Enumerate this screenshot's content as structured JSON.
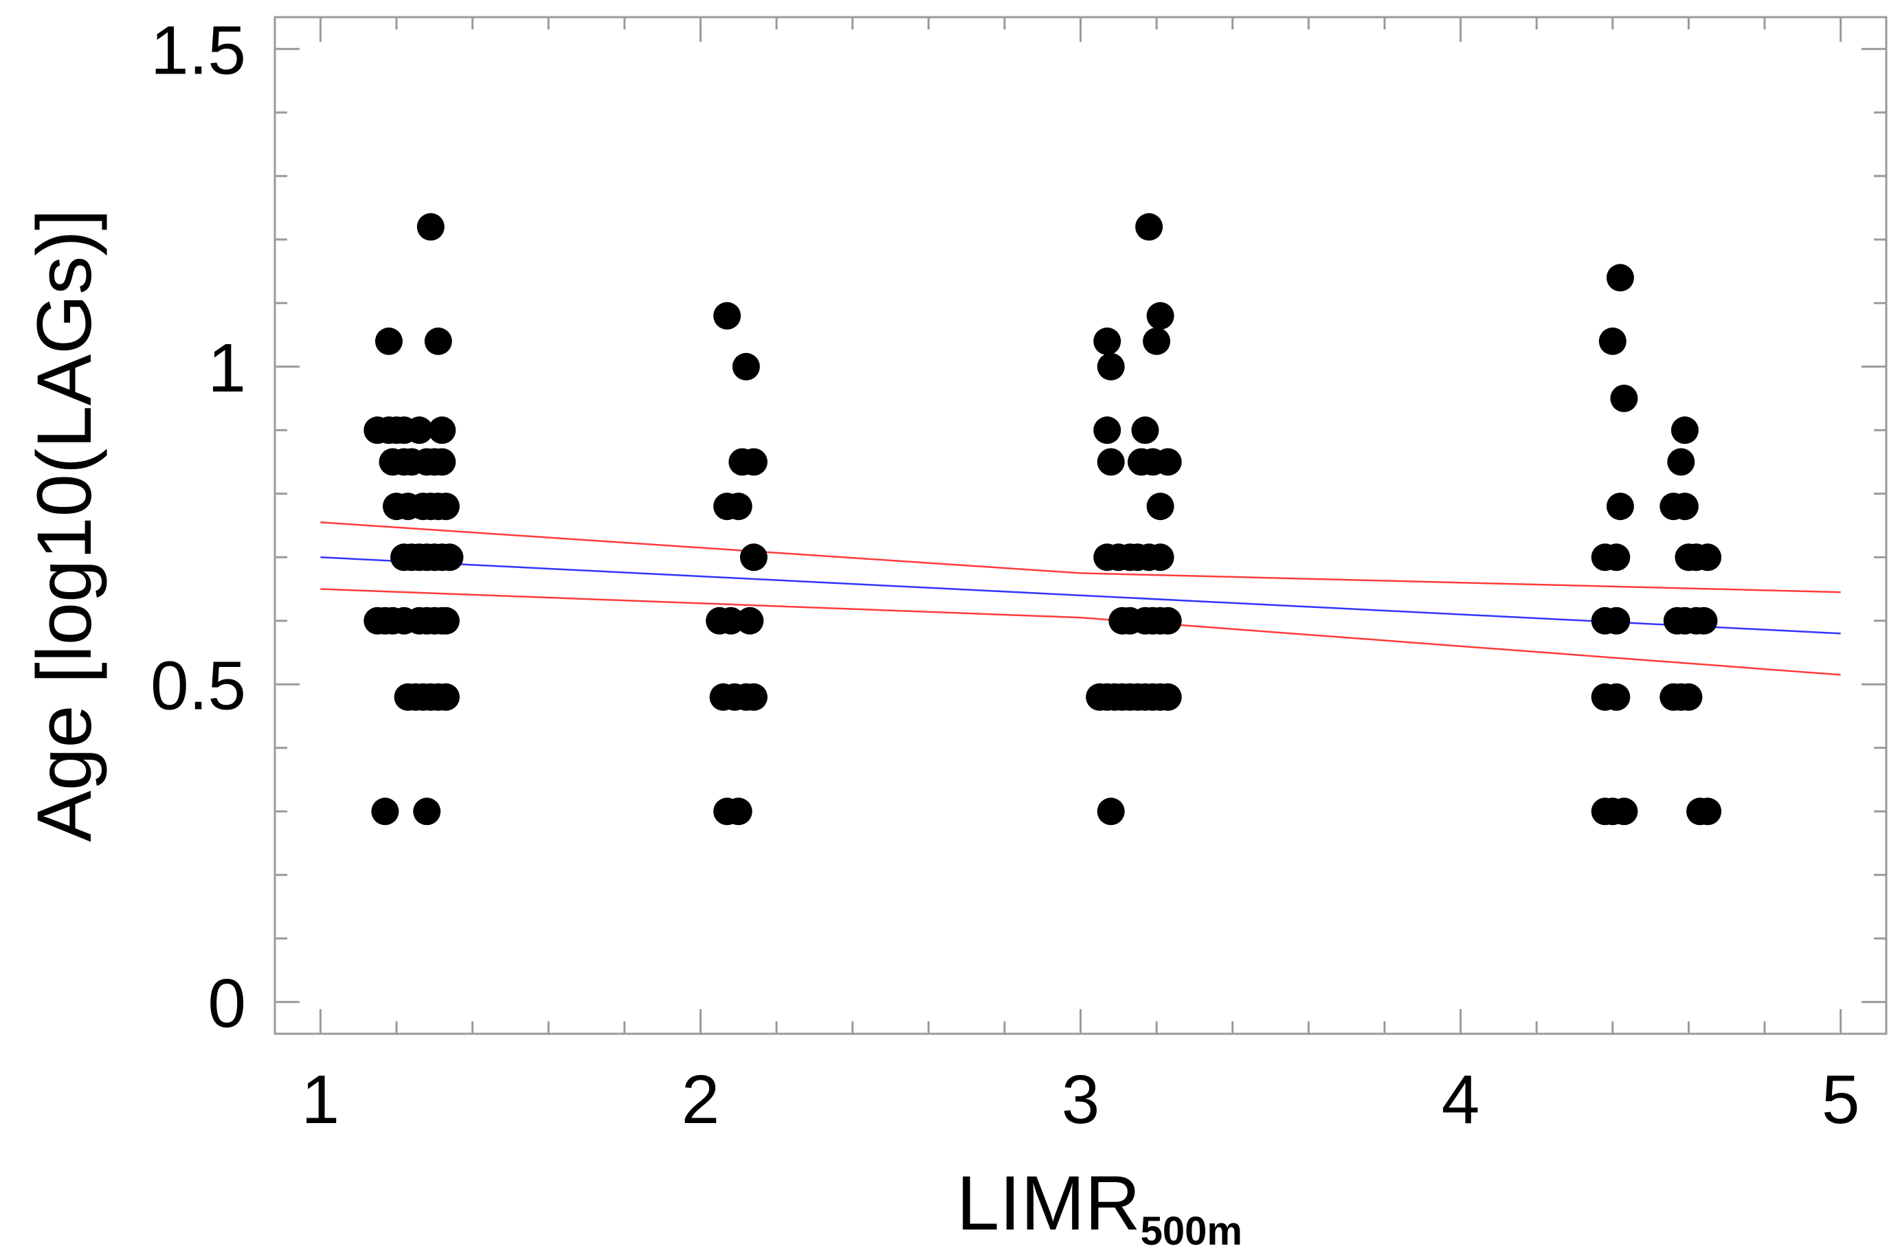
{
  "chart_data": {
    "type": "scatter",
    "xlabel": "LIMR",
    "xlabel_subscript": "500m",
    "ylabel": "Age [log10(LAGs)]",
    "xlim": [
      0.88,
      5.12
    ],
    "ylim": [
      -0.05,
      1.55
    ],
    "x_ticks": [
      1,
      2,
      3,
      4,
      5
    ],
    "x_tick_labels": [
      "1",
      "2",
      "3",
      "4",
      "5"
    ],
    "y_ticks": [
      0,
      0.5,
      1,
      1.5
    ],
    "y_tick_labels": [
      "0",
      "0.5",
      "1",
      "1.5"
    ],
    "grid": false,
    "colors": {
      "points": "#000000",
      "fit_line": "#3333ff",
      "ci_lines": "#ff3b3b",
      "frame": "#9a9a9a"
    },
    "points": [
      [
        1.17,
        0.3
      ],
      [
        1.28,
        0.3
      ],
      [
        1.18,
        1.04
      ],
      [
        1.31,
        1.04
      ],
      [
        1.29,
        1.22
      ],
      [
        1.15,
        0.9
      ],
      [
        1.18,
        0.9
      ],
      [
        1.2,
        0.9
      ],
      [
        1.22,
        0.9
      ],
      [
        1.26,
        0.9
      ],
      [
        1.32,
        0.9
      ],
      [
        1.19,
        0.85
      ],
      [
        1.22,
        0.85
      ],
      [
        1.24,
        0.85
      ],
      [
        1.28,
        0.85
      ],
      [
        1.3,
        0.85
      ],
      [
        1.32,
        0.85
      ],
      [
        1.2,
        0.78
      ],
      [
        1.23,
        0.78
      ],
      [
        1.27,
        0.78
      ],
      [
        1.29,
        0.78
      ],
      [
        1.31,
        0.78
      ],
      [
        1.33,
        0.78
      ],
      [
        1.22,
        0.7
      ],
      [
        1.24,
        0.7
      ],
      [
        1.26,
        0.7
      ],
      [
        1.28,
        0.7
      ],
      [
        1.3,
        0.7
      ],
      [
        1.32,
        0.7
      ],
      [
        1.34,
        0.7
      ],
      [
        1.15,
        0.6
      ],
      [
        1.17,
        0.6
      ],
      [
        1.19,
        0.6
      ],
      [
        1.22,
        0.6
      ],
      [
        1.26,
        0.6
      ],
      [
        1.28,
        0.6
      ],
      [
        1.3,
        0.6
      ],
      [
        1.32,
        0.6
      ],
      [
        1.33,
        0.6
      ],
      [
        1.23,
        0.48
      ],
      [
        1.25,
        0.48
      ],
      [
        1.27,
        0.48
      ],
      [
        1.29,
        0.48
      ],
      [
        1.31,
        0.48
      ],
      [
        1.33,
        0.48
      ],
      [
        2.07,
        0.3
      ],
      [
        2.1,
        0.3
      ],
      [
        2.07,
        1.08
      ],
      [
        2.12,
        1.0
      ],
      [
        2.11,
        0.85
      ],
      [
        2.14,
        0.85
      ],
      [
        2.07,
        0.78
      ],
      [
        2.1,
        0.78
      ],
      [
        2.14,
        0.7
      ],
      [
        2.05,
        0.6
      ],
      [
        2.08,
        0.6
      ],
      [
        2.13,
        0.6
      ],
      [
        2.06,
        0.48
      ],
      [
        2.09,
        0.48
      ],
      [
        2.12,
        0.48
      ],
      [
        2.14,
        0.48
      ],
      [
        3.08,
        0.3
      ],
      [
        3.07,
        1.04
      ],
      [
        3.08,
        1.0
      ],
      [
        3.18,
        1.22
      ],
      [
        3.2,
        1.04
      ],
      [
        3.21,
        1.08
      ],
      [
        3.07,
        0.9
      ],
      [
        3.17,
        0.9
      ],
      [
        3.08,
        0.85
      ],
      [
        3.16,
        0.85
      ],
      [
        3.19,
        0.85
      ],
      [
        3.23,
        0.85
      ],
      [
        3.21,
        0.78
      ],
      [
        3.07,
        0.7
      ],
      [
        3.1,
        0.7
      ],
      [
        3.13,
        0.7
      ],
      [
        3.15,
        0.7
      ],
      [
        3.18,
        0.7
      ],
      [
        3.21,
        0.7
      ],
      [
        3.11,
        0.6
      ],
      [
        3.13,
        0.6
      ],
      [
        3.17,
        0.6
      ],
      [
        3.19,
        0.6
      ],
      [
        3.21,
        0.6
      ],
      [
        3.23,
        0.6
      ],
      [
        3.05,
        0.48
      ],
      [
        3.07,
        0.48
      ],
      [
        3.09,
        0.48
      ],
      [
        3.11,
        0.48
      ],
      [
        3.13,
        0.48
      ],
      [
        3.15,
        0.48
      ],
      [
        3.17,
        0.48
      ],
      [
        3.19,
        0.48
      ],
      [
        3.21,
        0.48
      ],
      [
        3.23,
        0.48
      ],
      [
        4.38,
        0.3
      ],
      [
        4.4,
        0.3
      ],
      [
        4.43,
        0.3
      ],
      [
        4.4,
        1.04
      ],
      [
        4.42,
        1.14
      ],
      [
        4.43,
        0.95
      ],
      [
        4.42,
        0.78
      ],
      [
        4.38,
        0.7
      ],
      [
        4.41,
        0.7
      ],
      [
        4.38,
        0.6
      ],
      [
        4.41,
        0.6
      ],
      [
        4.38,
        0.48
      ],
      [
        4.41,
        0.48
      ],
      [
        4.63,
        0.3
      ],
      [
        4.65,
        0.3
      ],
      [
        4.59,
        0.9
      ],
      [
        4.58,
        0.85
      ],
      [
        4.56,
        0.78
      ],
      [
        4.59,
        0.78
      ],
      [
        4.6,
        0.7
      ],
      [
        4.62,
        0.7
      ],
      [
        4.65,
        0.7
      ],
      [
        4.57,
        0.6
      ],
      [
        4.59,
        0.6
      ],
      [
        4.62,
        0.6
      ],
      [
        4.64,
        0.6
      ],
      [
        4.56,
        0.48
      ],
      [
        4.58,
        0.48
      ],
      [
        4.6,
        0.48
      ]
    ],
    "fit_line": [
      [
        1,
        0.7
      ],
      [
        5,
        0.58
      ]
    ],
    "ci_upper": [
      [
        1,
        0.755
      ],
      [
        3,
        0.675
      ],
      [
        5,
        0.645
      ]
    ],
    "ci_lower": [
      [
        1,
        0.65
      ],
      [
        3,
        0.605
      ],
      [
        5,
        0.515
      ]
    ]
  }
}
